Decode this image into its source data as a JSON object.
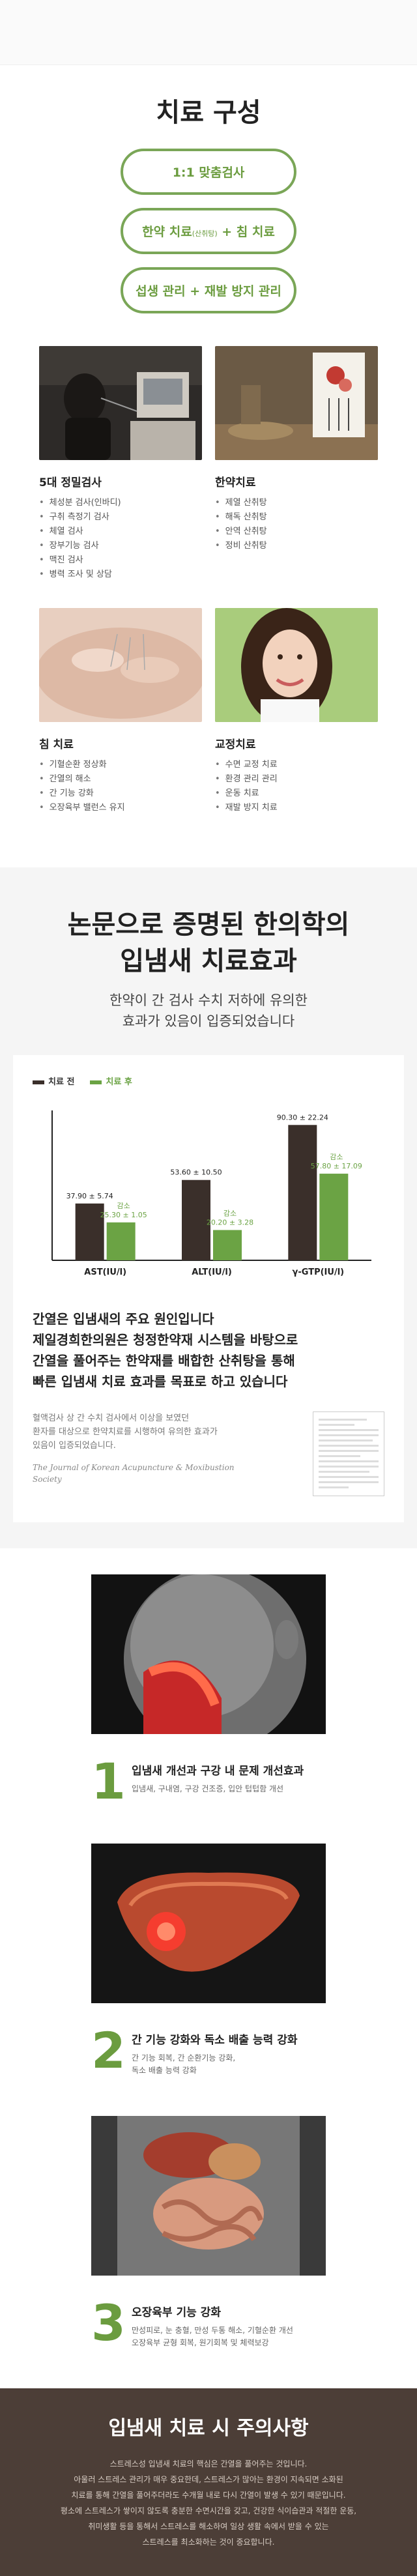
{
  "sec1": {
    "title": "치료 구성",
    "pills": [
      {
        "main": "1:1 맞춤검사",
        "small": "",
        "rest": ""
      },
      {
        "main": "한약 치료",
        "small": "(산취탕)",
        "rest": " + 침 치료"
      },
      {
        "main": "섭생 관리 + 재발 방지 관리",
        "small": "",
        "rest": ""
      }
    ],
    "cards": [
      {
        "title": "5대 정밀검사",
        "items": [
          "체성분 검사(인바디)",
          "구취 측정기 검사",
          "체열 검사",
          "장부기능 검사",
          "맥진 검사",
          "병력 조사 및 상담"
        ]
      },
      {
        "title": "한약치료",
        "items": [
          "제열 산취탕",
          "해독 산취탕",
          "안역 산취탕",
          "정비 산취탕"
        ]
      },
      {
        "title": "침 치료",
        "items": [
          "기혈순환 정상화",
          "간열의 해소",
          "간 기능 강화",
          "오장육부 밸런스 유지"
        ]
      },
      {
        "title": "교정치료",
        "items": [
          "수면 교정 치료",
          "환경 관리 관리",
          "운동 치료",
          "재발 방지 치료"
        ]
      }
    ]
  },
  "sec2": {
    "title_line1": "논문으로 증명된 한의학의",
    "title_line2": "입냄새 치료효과",
    "sub_line1": "한약이 간 검사 수치 저하에 유의한",
    "sub_line2": "효과가 있음이 입증되었습니다",
    "legend_before": "치료 전",
    "legend_after": "치료 후",
    "claim_line1": "간열은 입냄새의 주요 원인입니다",
    "claim_line2": "제일경희한의원은 청정한약재 시스템을 바탕으로",
    "claim_line3": "간열을 풀어주는 한약재를 배합한 산취탕을 통해",
    "claim_line4": "빠른 입냄새 치료 효과를 목표로 하고 있습니다",
    "note_line1": "혈액검사 상 간 수치 검사에서 이상을 보였던",
    "note_line2": "환자를 대상으로 한약치료를 시행하여 유의한 효과가",
    "note_line3": "있음이 입증되었습니다.",
    "cite_line1": "The Journal of Korean Acupuncture & Moxibustion",
    "cite_line2": "Society"
  },
  "chart_data": {
    "type": "bar",
    "categories": [
      "AST(IU/l)",
      "ALT(IU/l)",
      "γ-GTP(IU/l)"
    ],
    "series": [
      {
        "name": "치료 전",
        "values": [
          37.9,
          53.6,
          90.3
        ],
        "labels": [
          "37.90 ± 5.74",
          "53.60 ± 10.50",
          "90.30 ± 22.24"
        ]
      },
      {
        "name": "치료 후",
        "values": [
          25.3,
          20.2,
          57.8
        ],
        "labels": [
          "25.30 ± 1.05",
          "20.20 ± 3.28",
          "57.80 ± 17.09"
        ]
      }
    ],
    "annotation": "감소",
    "ylim": [
      0,
      100
    ],
    "colors": {
      "before": "#3a2f2a",
      "after": "#6ba344"
    }
  },
  "sec3": {
    "features": [
      {
        "num": "1",
        "title": "입냄새 개선과 구강 내 문제 개선효과",
        "desc1": "입냄새, 구내염, 구강 건조증, 입안 텁텁함 개선",
        "desc2": ""
      },
      {
        "num": "2",
        "title": "간 기능 강화와 독소 배출 능력 강화",
        "desc1": "간 기능 회복, 간 순환기능 강화,",
        "desc2": "독소 배출 능력 강화"
      },
      {
        "num": "3",
        "title": "오장육부 기능 강화",
        "desc1": "만성피로, 눈 충혈, 만성 두통 해소, 기혈순환 개선",
        "desc2": "오장육부 균형 회복, 원기회복 및 체력보강"
      }
    ]
  },
  "sec4": {
    "title": "입냄새 치료 시 주의사항",
    "lines": [
      "스트레스성 입냄새 치료의 핵심은 간열을 풀어주는 것입니다.",
      "아울러 스트레스 관리가 매우 중요한데, 스트레스가 많아는 환경이 지속되면 소화된",
      "치료를 통해 간열을 풀어주더라도 수개월 내로 다시 간열이 발생 수 있기 때문입니다.",
      "평소에 스트레스가 쌓이지 않도록 충분한 수면시간을 갖고, 건강한 식이습관과 적절한 운동,",
      "취미생활 등을 통해서 스트레스를 해소하여 일상 생활 속에서 받을 수 있는",
      "스트레스를 최소화하는 것이 중요합니다."
    ]
  }
}
